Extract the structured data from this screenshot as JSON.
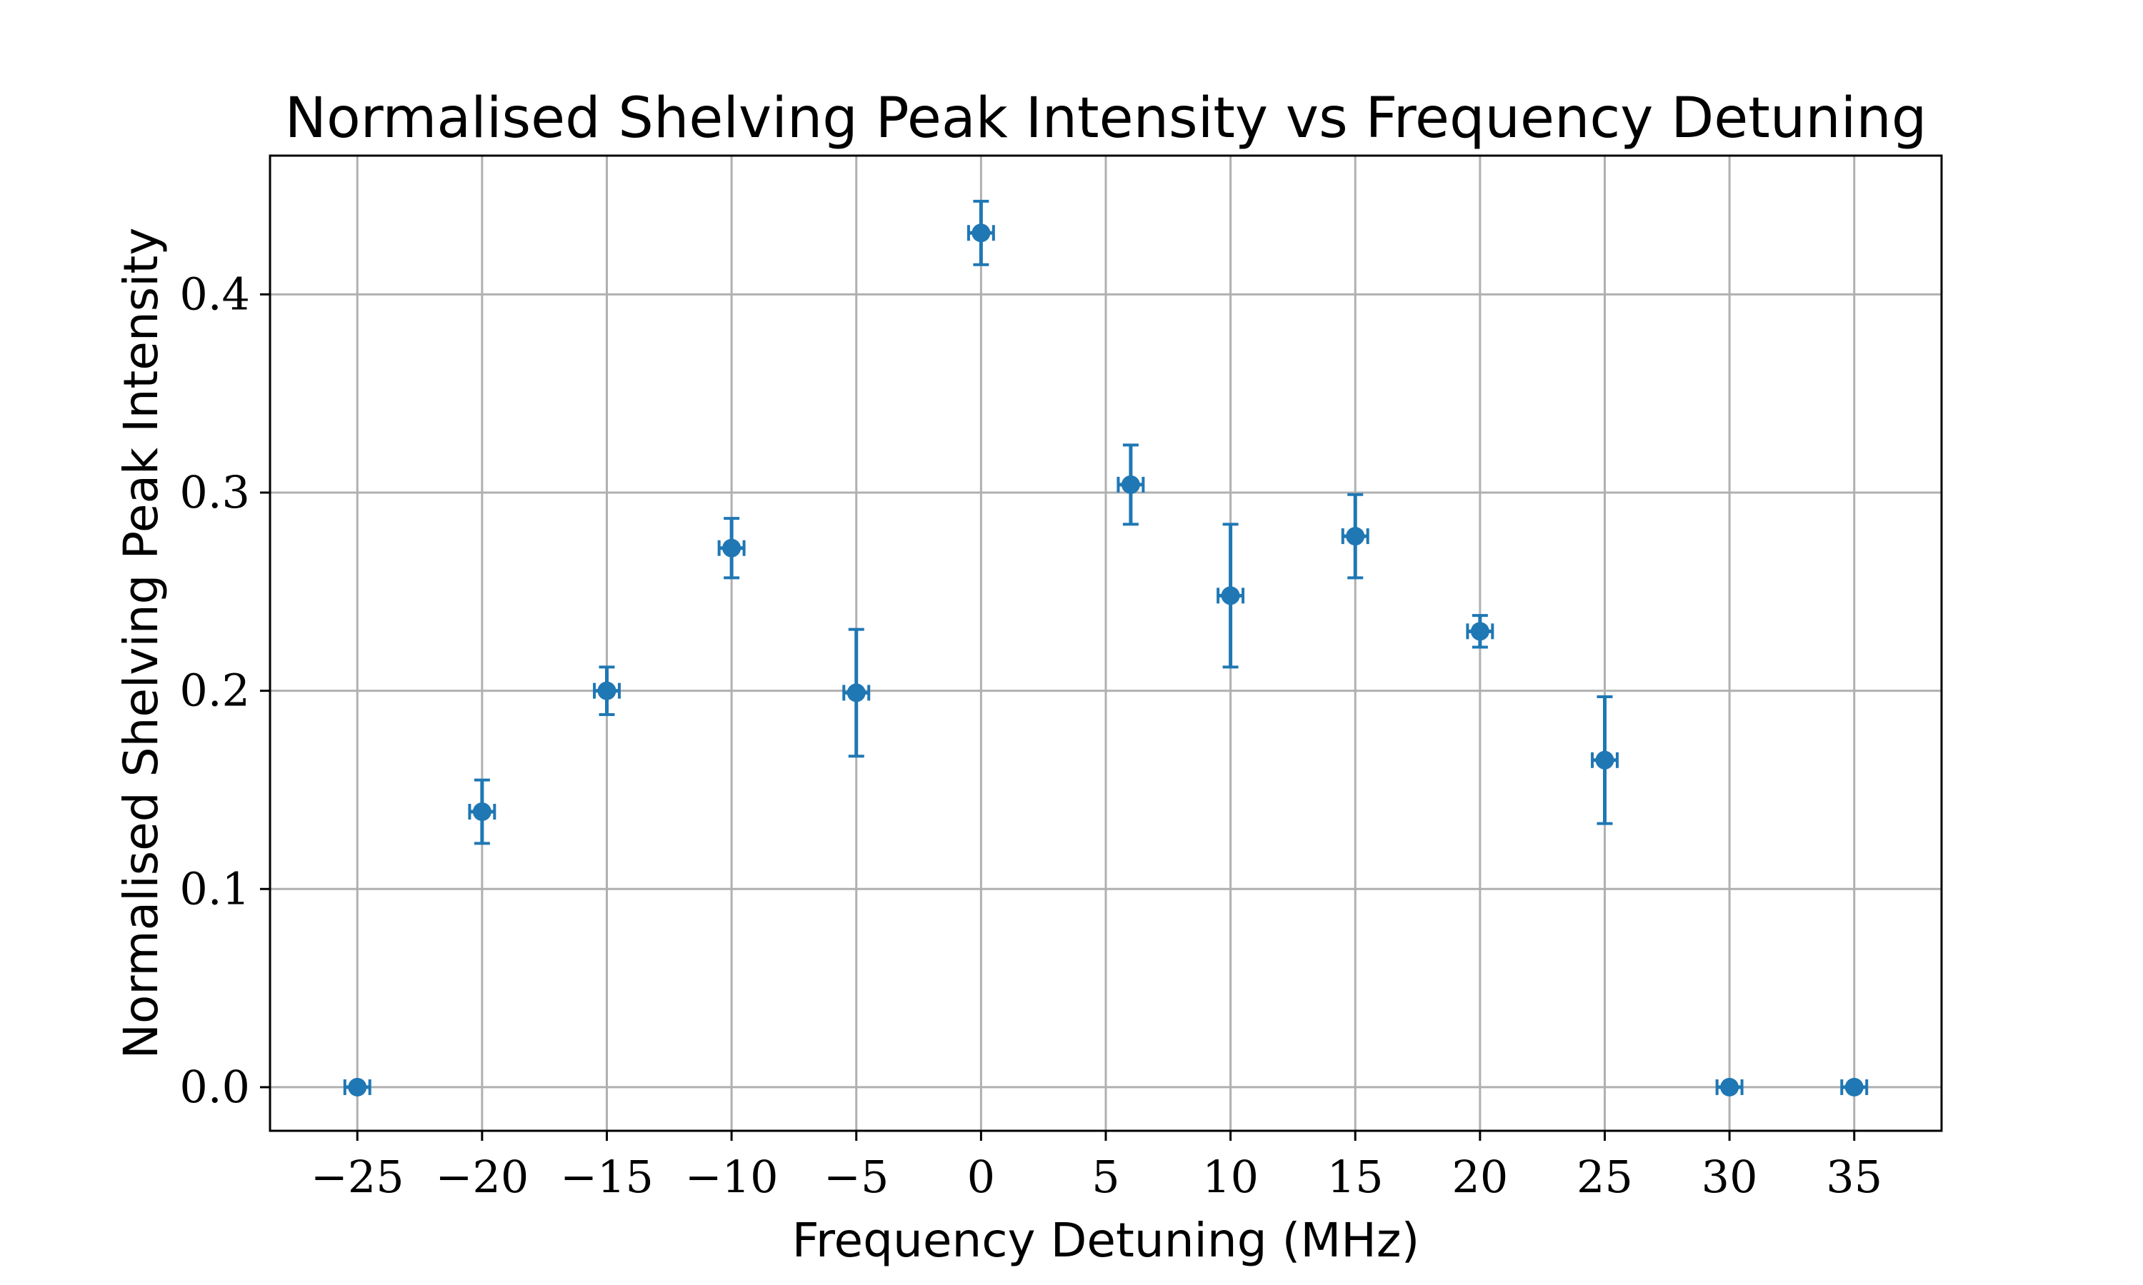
{
  "chart_data": {
    "type": "scatter",
    "title": "Normalised Shelving Peak Intensity vs Frequency Detuning",
    "xlabel": "Frequency Detuning (MHz)",
    "ylabel": "Normalised Shelving Peak Intensity",
    "xlim": [
      -28.5,
      38.5
    ],
    "ylim": [
      -0.022,
      0.47
    ],
    "xticks": [
      -25,
      -20,
      -15,
      -10,
      -5,
      0,
      5,
      10,
      15,
      20,
      25,
      30,
      35
    ],
    "xtick_labels": [
      "−25",
      "−20",
      "−15",
      "−10",
      "−5",
      "0",
      "5",
      "10",
      "15",
      "20",
      "25",
      "30",
      "35"
    ],
    "yticks": [
      0.0,
      0.1,
      0.2,
      0.3,
      0.4
    ],
    "ytick_labels": [
      "0.0",
      "0.1",
      "0.2",
      "0.3",
      "0.4"
    ],
    "grid": true,
    "marker_color": "#1f77b4",
    "x_error": 0.5,
    "series": [
      {
        "points": [
          {
            "x": -25,
            "y": 0.0,
            "yerr": 0.0
          },
          {
            "x": -20,
            "y": 0.139,
            "yerr": 0.016
          },
          {
            "x": -15,
            "y": 0.2,
            "yerr": 0.012
          },
          {
            "x": -10,
            "y": 0.272,
            "yerr": 0.015
          },
          {
            "x": -5,
            "y": 0.199,
            "yerr": 0.032
          },
          {
            "x": 0,
            "y": 0.431,
            "yerr": 0.016
          },
          {
            "x": 6,
            "y": 0.304,
            "yerr": 0.02
          },
          {
            "x": 10,
            "y": 0.248,
            "yerr": 0.036
          },
          {
            "x": 15,
            "y": 0.278,
            "yerr": 0.021
          },
          {
            "x": 20,
            "y": 0.23,
            "yerr": 0.008
          },
          {
            "x": 25,
            "y": 0.165,
            "yerr": 0.032
          },
          {
            "x": 30,
            "y": 0.0,
            "yerr": 0.0
          },
          {
            "x": 35,
            "y": 0.0,
            "yerr": 0.0
          }
        ]
      }
    ]
  }
}
